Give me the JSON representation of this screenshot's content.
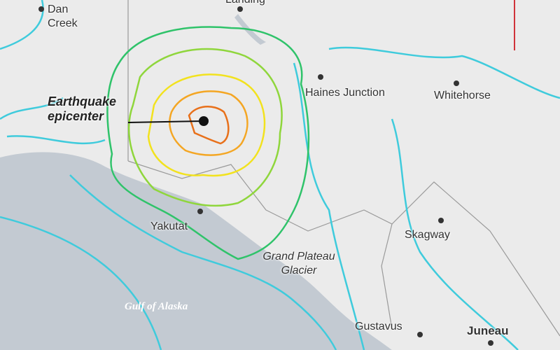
{
  "map": {
    "colors": {
      "land": "#ebebeb",
      "water": "#c3cad2",
      "intensity_1": "#3fcbdc",
      "intensity_2": "#2fc36a",
      "intensity_3": "#8fd63c",
      "intensity_4": "#f2e21e",
      "intensity_5": "#f4a623",
      "intensity_6": "#e8701a",
      "marker_line": "#d0333a"
    },
    "epicenter_label": "Earthquake epicenter",
    "places": [
      {
        "name": "Dan Creek"
      },
      {
        "name": "Landing"
      },
      {
        "name": "Haines Junction"
      },
      {
        "name": "Whitehorse"
      },
      {
        "name": "Yakutat"
      },
      {
        "name": "Skagway"
      },
      {
        "name": "Gustavus"
      },
      {
        "name": "Juneau"
      }
    ],
    "features": [
      {
        "name": "Grand Plateau Glacier"
      },
      {
        "name": "Gulf of Alaska"
      }
    ]
  }
}
